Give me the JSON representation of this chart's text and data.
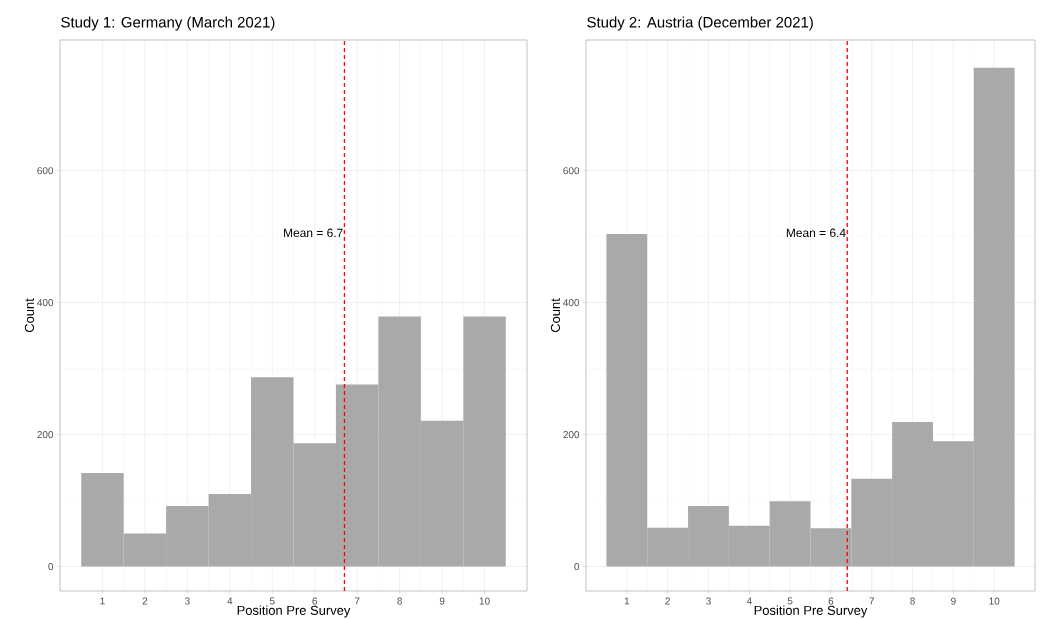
{
  "chart_data": [
    {
      "type": "histogram",
      "title": "Study 1: Germany (March 2021)",
      "xlabel": "Position Pre Survey",
      "ylabel": "Count",
      "bins": [
        0.5,
        1.5,
        2.5,
        3.5,
        4.5,
        5.5,
        6.5,
        7.5,
        8.5,
        9.5,
        10.5
      ],
      "values": [
        142,
        50,
        92,
        110,
        287,
        187,
        276,
        379,
        221,
        379
      ],
      "color": "#a9a9a9",
      "xlim": [
        0,
        11
      ],
      "ylim": [
        -37,
        798
      ],
      "xticks": [
        1,
        2,
        3,
        4,
        5,
        6,
        7,
        8,
        9,
        10
      ],
      "yticks": [
        0,
        200,
        400,
        600
      ],
      "grid": true,
      "ref_lines": [
        {
          "axis": "x",
          "value": 6.7,
          "label": "Mean = 6.7",
          "color": "#ff0000",
          "line_style": "dashed"
        }
      ]
    },
    {
      "type": "histogram",
      "title": "Study 2: Austria (December 2021)",
      "xlabel": "Position Pre Survey",
      "ylabel": "Count",
      "bins": [
        0.5,
        1.5,
        2.5,
        3.5,
        4.5,
        5.5,
        6.5,
        7.5,
        8.5,
        9.5,
        10.5
      ],
      "values": [
        504,
        59,
        92,
        62,
        99,
        58,
        133,
        219,
        190,
        756
      ],
      "color": "#a9a9a9",
      "xlim": [
        0,
        11
      ],
      "ylim": [
        -37,
        798
      ],
      "xticks": [
        1,
        2,
        3,
        4,
        5,
        6,
        7,
        8,
        9,
        10
      ],
      "yticks": [
        0,
        200,
        400,
        600
      ],
      "grid": true,
      "ref_lines": [
        {
          "axis": "x",
          "value": 6.4,
          "label": "Mean = 6.4",
          "color": "#ff0000",
          "line_style": "dashed"
        }
      ]
    }
  ]
}
